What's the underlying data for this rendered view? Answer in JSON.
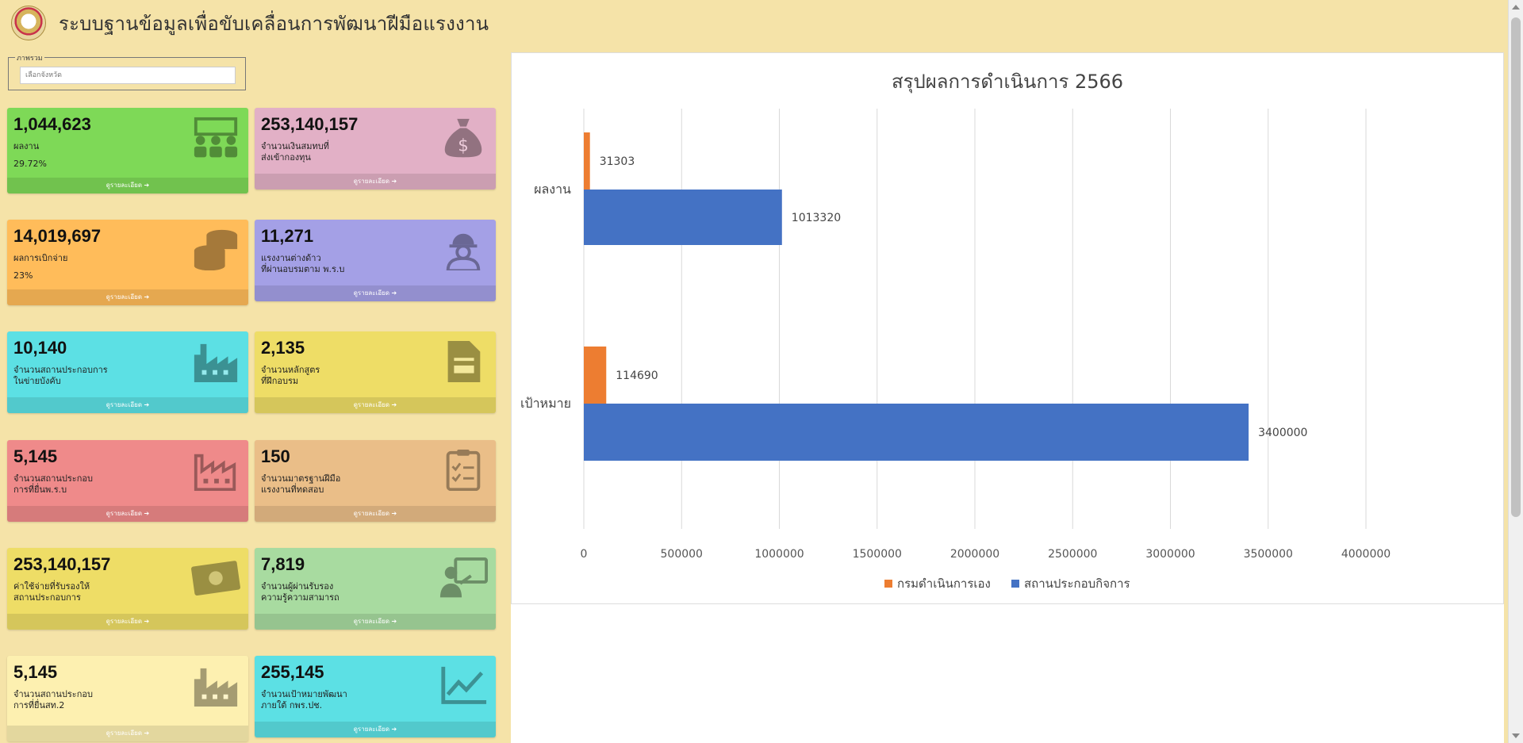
{
  "header": {
    "title": "ระบบฐานข้อมูลเพื่อขับเคลื่อนการพัฒนาฝีมือแรงงาน"
  },
  "filter": {
    "legend": "ภาพรวม",
    "placeholder": "เลือกจังหวัด"
  },
  "cards": [
    {
      "value": "1,044,623",
      "label_lines": [
        "ผลงาน"
      ],
      "sub": "29.72%",
      "footer": "ดูรายละเอียด ➔",
      "color": "#7ed957",
      "icon": "group-icon"
    },
    {
      "value": "253,140,157",
      "label_lines": [
        "จำนวนเงินสมทบที่",
        "ส่งเข้ากองทุน"
      ],
      "sub": "",
      "footer": "ดูรายละเอียด ➔",
      "color": "#e2b0c6",
      "icon": "money-bag-icon"
    },
    {
      "value": "14,019,697",
      "label_lines": [
        "ผลการเบิกจ่าย"
      ],
      "sub": "23%",
      "footer": "ดูรายละเอียด ➔",
      "color": "#ffbc5a",
      "icon": "coins-icon"
    },
    {
      "value": "11,271",
      "label_lines": [
        "แรงงานต่างด้าว",
        "ที่ผ่านอบรมตาม พ.ร.บ"
      ],
      "sub": "",
      "footer": "ดูรายละเอียด ➔",
      "color": "#a4a0e6",
      "icon": "worker-icon"
    },
    {
      "value": "10,140",
      "label_lines": [
        "จำนวนสถานประกอบการ",
        "ในข่ายบังคับ"
      ],
      "sub": "",
      "footer": "ดูรายละเอียด ➔",
      "color": "#5ce0e4",
      "icon": "factory-icon"
    },
    {
      "value": "2,135",
      "label_lines": [
        "จำนวนหลักสูตร",
        "ที่ฝึกอบรม"
      ],
      "sub": "",
      "footer": "ดูรายละเอียด ➔",
      "color": "#eedd66",
      "icon": "document-icon"
    },
    {
      "value": "5,145",
      "label_lines": [
        "จำนวนสถานประกอบ",
        "การที่ยื่นพ.ร.บ"
      ],
      "sub": "",
      "footer": "ดูรายละเอียด ➔",
      "color": "#ef8a8a",
      "icon": "factory-outline-icon"
    },
    {
      "value": "150",
      "label_lines": [
        "จำนวนมาตรฐานฝีมือ",
        "แรงงานที่ทดสอบ"
      ],
      "sub": "",
      "footer": "ดูรายละเอียด ➔",
      "color": "#eabe88",
      "icon": "clipboard-check-icon"
    },
    {
      "value": "253,140,157",
      "label_lines": [
        "ค่าใช้จ่ายที่รับรองให้",
        "สถานประกอบการ"
      ],
      "sub": "",
      "footer": "ดูรายละเอียด ➔",
      "color": "#eedd66",
      "icon": "banknote-icon"
    },
    {
      "value": "7,819",
      "label_lines": [
        "จำนวนผู้ผ่านรับรอง",
        "ความรู้ความสามารถ"
      ],
      "sub": "",
      "footer": "ดูรายละเอียด ➔",
      "color": "#a8dba0",
      "icon": "teacher-icon"
    },
    {
      "value": "5,145",
      "label_lines": [
        "จำนวนสถานประกอบ",
        "การที่ยื่นสท.2"
      ],
      "sub": "",
      "footer": "ดูรายละเอียด ➔",
      "color": "#fdf0b0",
      "icon": "factory-light-icon"
    },
    {
      "value": "255,145",
      "label_lines": [
        "จำนวนเป้าหมายพัฒนา",
        "ภายใต้ กพร.ปช."
      ],
      "sub": "",
      "footer": "ดูรายละเอียด ➔",
      "color": "#5ce0e4",
      "icon": "line-chart-icon"
    }
  ],
  "chart_data": {
    "type": "bar",
    "orientation": "horizontal",
    "title": "สรุปผลการดำเนินการ 2566",
    "categories": [
      "ผลงาน",
      "เป้าหมาย"
    ],
    "series": [
      {
        "name": "กรมดำเนินการเอง",
        "values": [
          31303,
          114690
        ],
        "color": "#ed7d31"
      },
      {
        "name": "สถานประกอบกิจการ",
        "values": [
          1013320,
          3400000
        ],
        "color": "#4472c4"
      }
    ],
    "xlim": [
      0,
      4000000
    ],
    "xticks": [
      0,
      500000,
      1000000,
      1500000,
      2000000,
      2500000,
      3000000,
      3500000,
      4000000
    ],
    "grid": true,
    "legend_position": "bottom"
  }
}
